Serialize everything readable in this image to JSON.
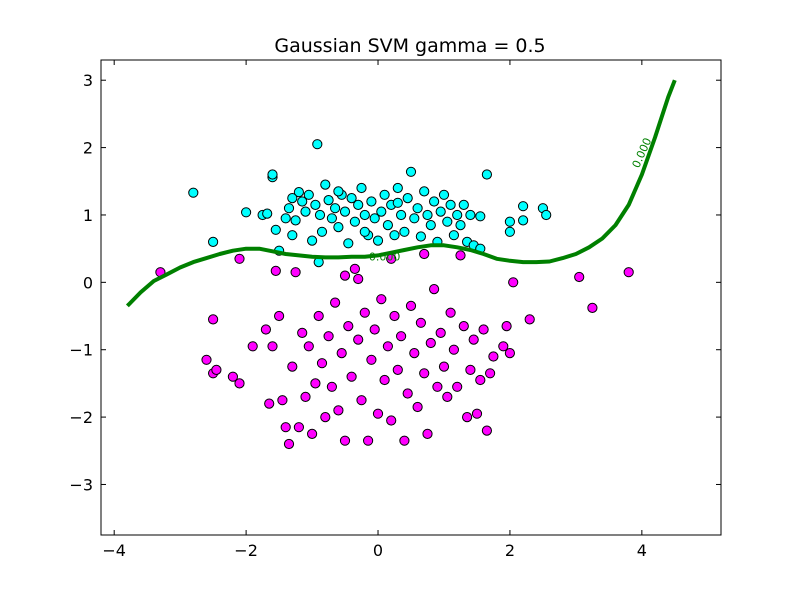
{
  "chart_data": {
    "type": "scatter",
    "title": "Gaussian SVM gamma = 0.5",
    "xlabel": "",
    "ylabel": "",
    "xlim": [
      -4.2,
      5.2
    ],
    "ylim": [
      -3.75,
      3.3
    ],
    "xticks": [
      -4,
      -2,
      0,
      2,
      4
    ],
    "yticks": [
      3,
      2,
      1,
      0,
      -1,
      -2,
      -3
    ],
    "xtick_labels": [
      "−4",
      "−2",
      "0",
      "2",
      "4"
    ],
    "ytick_labels": [
      "3",
      "2",
      "1",
      "0",
      "−1",
      "−2",
      "−3"
    ],
    "grid": false,
    "colors": {
      "class_a": "#00ffff",
      "class_b": "#ff00ff",
      "boundary": "#008000",
      "marker_edge": "#000000"
    },
    "series": [
      {
        "color": "#00ffff",
        "points": [
          [
            -2.8,
            1.33
          ],
          [
            -2.5,
            0.6
          ],
          [
            -2.0,
            1.04
          ],
          [
            -1.75,
            1.0
          ],
          [
            -1.68,
            1.02
          ],
          [
            -1.6,
            1.56
          ],
          [
            -1.6,
            1.6
          ],
          [
            -1.55,
            0.78
          ],
          [
            -1.5,
            0.47
          ],
          [
            -1.4,
            0.95
          ],
          [
            -1.35,
            1.1
          ],
          [
            -1.3,
            0.7
          ],
          [
            -1.25,
            0.92
          ],
          [
            -1.2,
            1.34
          ],
          [
            -1.15,
            1.2
          ],
          [
            -1.1,
            1.05
          ],
          [
            -1.05,
            1.3
          ],
          [
            -1.0,
            0.62
          ],
          [
            -0.95,
            1.15
          ],
          [
            -0.92,
            2.05
          ],
          [
            -0.9,
            0.3
          ],
          [
            -0.88,
            1.0
          ],
          [
            -0.85,
            0.75
          ],
          [
            -0.8,
            1.45
          ],
          [
            -0.75,
            1.22
          ],
          [
            -0.7,
            0.95
          ],
          [
            -0.65,
            1.1
          ],
          [
            -0.6,
            0.82
          ],
          [
            -0.55,
            1.3
          ],
          [
            -0.5,
            1.05
          ],
          [
            -0.45,
            0.58
          ],
          [
            -0.4,
            1.25
          ],
          [
            -0.35,
            0.9
          ],
          [
            -0.3,
            1.15
          ],
          [
            -0.25,
            1.4
          ],
          [
            -0.2,
            1.0
          ],
          [
            -0.15,
            0.7
          ],
          [
            -0.1,
            1.2
          ],
          [
            -0.05,
            0.95
          ],
          [
            0.0,
            0.62
          ],
          [
            0.05,
            1.05
          ],
          [
            0.1,
            1.3
          ],
          [
            0.15,
            0.85
          ],
          [
            0.2,
            1.15
          ],
          [
            0.25,
            0.7
          ],
          [
            0.3,
            1.4
          ],
          [
            0.35,
            1.0
          ],
          [
            0.4,
            0.75
          ],
          [
            0.45,
            1.25
          ],
          [
            0.5,
            1.64
          ],
          [
            0.55,
            0.95
          ],
          [
            0.6,
            1.1
          ],
          [
            0.65,
            0.68
          ],
          [
            0.7,
            1.35
          ],
          [
            0.75,
            1.0
          ],
          [
            0.8,
            0.85
          ],
          [
            0.85,
            1.2
          ],
          [
            0.9,
            0.6
          ],
          [
            0.95,
            1.05
          ],
          [
            1.0,
            1.3
          ],
          [
            1.05,
            0.9
          ],
          [
            1.1,
            1.15
          ],
          [
            1.15,
            0.7
          ],
          [
            1.2,
            1.0
          ],
          [
            1.25,
            0.85
          ],
          [
            1.3,
            1.15
          ],
          [
            1.35,
            0.6
          ],
          [
            1.4,
            1.0
          ],
          [
            1.45,
            0.55
          ],
          [
            1.55,
            0.5
          ],
          [
            1.55,
            0.98
          ],
          [
            1.65,
            1.6
          ],
          [
            2.0,
            0.9
          ],
          [
            2.0,
            0.75
          ],
          [
            2.2,
            0.92
          ],
          [
            2.2,
            1.13
          ],
          [
            2.5,
            1.1
          ],
          [
            2.55,
            1.0
          ],
          [
            -1.3,
            1.25
          ],
          [
            -0.6,
            1.35
          ],
          [
            0.3,
            1.18
          ],
          [
            -0.2,
            0.75
          ]
        ]
      },
      {
        "color": "#ff00ff",
        "points": [
          [
            -3.3,
            0.15
          ],
          [
            -2.6,
            -1.15
          ],
          [
            -2.5,
            -0.55
          ],
          [
            -2.5,
            -1.35
          ],
          [
            -2.45,
            -1.3
          ],
          [
            -2.2,
            -1.4
          ],
          [
            -2.1,
            -1.5
          ],
          [
            -2.1,
            0.35
          ],
          [
            -1.9,
            -0.95
          ],
          [
            -1.7,
            -0.7
          ],
          [
            -1.65,
            -1.8
          ],
          [
            -1.6,
            -0.95
          ],
          [
            -1.55,
            0.17
          ],
          [
            -1.5,
            -0.5
          ],
          [
            -1.45,
            -1.75
          ],
          [
            -1.4,
            -2.15
          ],
          [
            -1.35,
            -2.4
          ],
          [
            -1.3,
            -1.25
          ],
          [
            -1.25,
            0.15
          ],
          [
            -1.2,
            -2.15
          ],
          [
            -1.15,
            -0.75
          ],
          [
            -1.1,
            -1.7
          ],
          [
            -1.05,
            -0.95
          ],
          [
            -1.0,
            -2.25
          ],
          [
            -0.95,
            -1.5
          ],
          [
            -0.9,
            -0.5
          ],
          [
            -0.85,
            -1.2
          ],
          [
            -0.8,
            -2.0
          ],
          [
            -0.75,
            -0.8
          ],
          [
            -0.7,
            -1.55
          ],
          [
            -0.65,
            -0.3
          ],
          [
            -0.6,
            -1.9
          ],
          [
            -0.55,
            -1.05
          ],
          [
            -0.5,
            -2.35
          ],
          [
            -0.45,
            -0.65
          ],
          [
            -0.4,
            -1.4
          ],
          [
            -0.35,
            0.2
          ],
          [
            -0.3,
            -0.85
          ],
          [
            -0.25,
            -1.75
          ],
          [
            -0.2,
            -0.45
          ],
          [
            -0.15,
            -2.35
          ],
          [
            -0.1,
            -1.15
          ],
          [
            -0.05,
            -0.7
          ],
          [
            0.0,
            -1.95
          ],
          [
            0.05,
            -0.25
          ],
          [
            0.1,
            -1.45
          ],
          [
            0.15,
            -0.95
          ],
          [
            0.2,
            -2.05
          ],
          [
            0.25,
            -0.5
          ],
          [
            0.3,
            -1.3
          ],
          [
            0.35,
            -0.8
          ],
          [
            0.4,
            -2.35
          ],
          [
            0.45,
            -1.65
          ],
          [
            0.5,
            -0.35
          ],
          [
            0.55,
            -1.05
          ],
          [
            0.6,
            -1.85
          ],
          [
            0.65,
            -0.6
          ],
          [
            0.7,
            -1.35
          ],
          [
            0.75,
            -2.25
          ],
          [
            0.8,
            -0.9
          ],
          [
            0.85,
            -0.1
          ],
          [
            0.9,
            -1.55
          ],
          [
            0.95,
            -0.75
          ],
          [
            1.0,
            -1.25
          ],
          [
            1.05,
            -1.7
          ],
          [
            1.1,
            -0.45
          ],
          [
            1.15,
            -1.0
          ],
          [
            1.2,
            -1.55
          ],
          [
            1.25,
            0.4
          ],
          [
            1.3,
            -0.65
          ],
          [
            1.35,
            -2.0
          ],
          [
            1.4,
            -1.3
          ],
          [
            1.45,
            -0.85
          ],
          [
            1.5,
            -1.95
          ],
          [
            1.55,
            -1.45
          ],
          [
            1.6,
            -0.7
          ],
          [
            1.65,
            -2.2
          ],
          [
            1.7,
            -1.35
          ],
          [
            1.75,
            -1.1
          ],
          [
            1.9,
            -0.95
          ],
          [
            1.95,
            -0.65
          ],
          [
            2.0,
            -1.05
          ],
          [
            2.05,
            0.0
          ],
          [
            2.3,
            -0.55
          ],
          [
            3.05,
            0.08
          ],
          [
            3.25,
            -0.38
          ],
          [
            3.8,
            0.15
          ],
          [
            -0.3,
            0.05
          ],
          [
            0.7,
            0.42
          ],
          [
            -0.5,
            0.1
          ],
          [
            0.2,
            0.35
          ]
        ]
      }
    ],
    "boundary": {
      "level_label": "0.000",
      "points": [
        [
          -3.8,
          -0.35
        ],
        [
          -3.6,
          -0.15
        ],
        [
          -3.4,
          0.02
        ],
        [
          -3.2,
          0.12
        ],
        [
          -3.0,
          0.22
        ],
        [
          -2.8,
          0.3
        ],
        [
          -2.6,
          0.36
        ],
        [
          -2.4,
          0.42
        ],
        [
          -2.2,
          0.47
        ],
        [
          -2.0,
          0.5
        ],
        [
          -1.8,
          0.5
        ],
        [
          -1.6,
          0.46
        ],
        [
          -1.4,
          0.42
        ],
        [
          -1.2,
          0.4
        ],
        [
          -1.0,
          0.38
        ],
        [
          -0.8,
          0.37
        ],
        [
          -0.6,
          0.37
        ],
        [
          -0.4,
          0.38
        ],
        [
          -0.2,
          0.38
        ],
        [
          0.0,
          0.4
        ],
        [
          0.2,
          0.44
        ],
        [
          0.4,
          0.48
        ],
        [
          0.6,
          0.52
        ],
        [
          0.8,
          0.55
        ],
        [
          1.0,
          0.55
        ],
        [
          1.2,
          0.52
        ],
        [
          1.4,
          0.48
        ],
        [
          1.6,
          0.42
        ],
        [
          1.8,
          0.35
        ],
        [
          2.0,
          0.32
        ],
        [
          2.2,
          0.3
        ],
        [
          2.4,
          0.3
        ],
        [
          2.6,
          0.31
        ],
        [
          2.8,
          0.36
        ],
        [
          3.0,
          0.42
        ],
        [
          3.2,
          0.52
        ],
        [
          3.4,
          0.65
        ],
        [
          3.6,
          0.85
        ],
        [
          3.8,
          1.15
        ],
        [
          4.0,
          1.6
        ],
        [
          4.2,
          2.15
        ],
        [
          4.4,
          2.75
        ],
        [
          4.5,
          3.0
        ]
      ]
    }
  }
}
